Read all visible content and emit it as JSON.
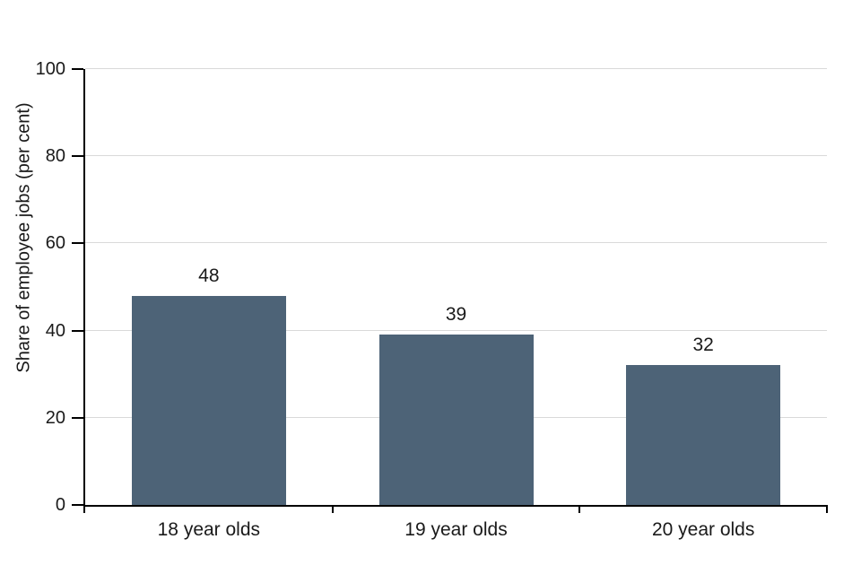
{
  "chart_data": {
    "type": "bar",
    "title": "",
    "xlabel": "",
    "ylabel": "Share of employee jobs (per cent)",
    "categories": [
      "18 year olds",
      "19 year olds",
      "20 year olds"
    ],
    "values": [
      48,
      39,
      32
    ],
    "data_labels": [
      "48",
      "39",
      "32"
    ],
    "y_tick_labels": [
      "0",
      "20",
      "40",
      "60",
      "80",
      "100"
    ],
    "yticks": [
      0,
      20,
      40,
      60,
      80,
      100
    ],
    "ylim": [
      0,
      100
    ],
    "grid": "horizontal gridlines at y ticks",
    "legend": "none",
    "colors": {
      "bar": "#4d6377",
      "gridline": "#d9d9d9",
      "axis": "#000000",
      "text": "#1a1a1a",
      "background": "#ffffff"
    }
  }
}
